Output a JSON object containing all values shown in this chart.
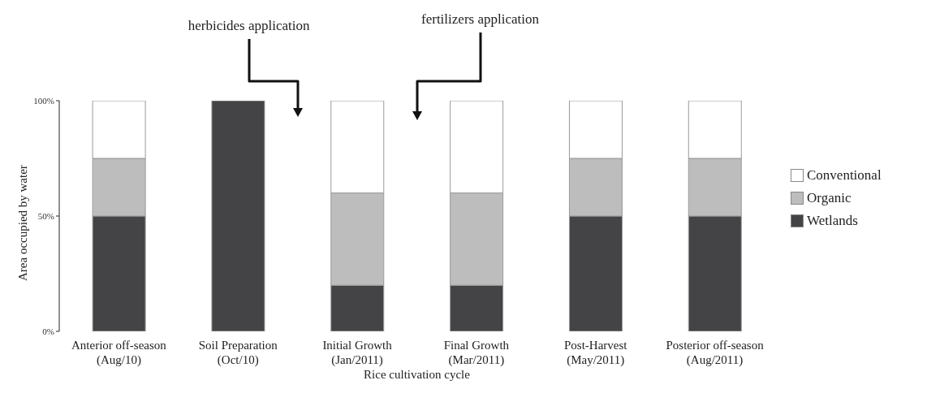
{
  "chart_data": {
    "type": "bar",
    "stacked": true,
    "xlabel": "Rice cultivation cycle",
    "ylabel": "Area occupied by water",
    "categories": [
      "Anterior off-season\n(Aug/10)",
      "Soil Preparation\n(Oct/10)",
      "Initial Growth\n(Jan/2011)",
      "Final Growth\n(Mar/2011)",
      "Post-Harvest\n(May/2011)",
      "Posterior off-season\n(Aug/2011)"
    ],
    "series": [
      {
        "name": "Wetlands",
        "color": "#444446",
        "values": [
          50,
          100,
          20,
          20,
          50,
          50
        ]
      },
      {
        "name": "Organic",
        "color": "#bdbdbd",
        "values": [
          25,
          0,
          40,
          40,
          25,
          25
        ]
      },
      {
        "name": "Conventional",
        "color": "#ffffff",
        "values": [
          25,
          0,
          40,
          40,
          25,
          25
        ]
      }
    ],
    "ylim": [
      0,
      100
    ],
    "yticks": [
      {
        "value": 0,
        "label": "0%"
      },
      {
        "value": 50,
        "label": "50%"
      },
      {
        "value": 100,
        "label": "100%"
      }
    ],
    "legend": "right",
    "grid": false,
    "annotations": [
      "herbicides application",
      "fertilizers application"
    ]
  }
}
